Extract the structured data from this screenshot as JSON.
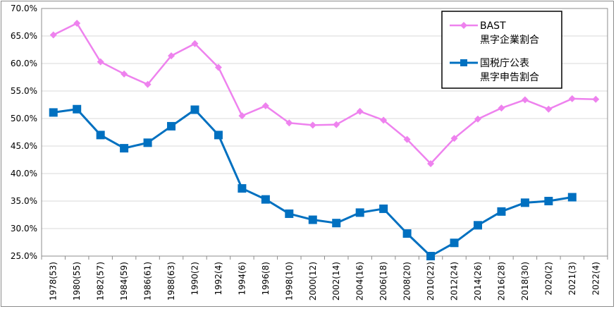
{
  "chart_data": {
    "type": "line",
    "title": "",
    "xlabel": "",
    "ylabel": "",
    "categories": [
      "1978(53)",
      "1980(55)",
      "1982(57)",
      "1984(59)",
      "1986(61)",
      "1988(63)",
      "1990(2)",
      "1992(4)",
      "1994(6)",
      "1996(8)",
      "1998(10)",
      "2000(12)",
      "2002(14)",
      "2004(16)",
      "2006(18)",
      "2008(20)",
      "2010(22)",
      "2012(24)",
      "2014(26)",
      "2016(28)",
      "2018(30)",
      "2020(2)",
      "2021(3)",
      "2022(4)"
    ],
    "ylim": [
      25.0,
      70.0
    ],
    "yticks": [
      "25.0%",
      "30.0%",
      "35.0%",
      "40.0%",
      "45.0%",
      "50.0%",
      "55.0%",
      "60.0%",
      "65.0%",
      "70.0%"
    ],
    "grid": true,
    "legend_position": "top-right",
    "series": [
      {
        "name_lines": [
          "BAST",
          "黒字企業割合"
        ],
        "color": "#ee82ee",
        "marker": "diamond",
        "values": [
          65.2,
          67.3,
          60.3,
          58.1,
          56.2,
          61.4,
          63.6,
          59.3,
          50.5,
          52.3,
          49.2,
          48.8,
          48.9,
          51.3,
          49.7,
          46.2,
          41.8,
          46.4,
          49.9,
          51.9,
          53.4,
          51.7,
          53.6,
          53.5
        ]
      },
      {
        "name_lines": [
          "国税庁公表",
          "黒字申告割合"
        ],
        "color": "#0070c0",
        "marker": "square",
        "values": [
          51.1,
          51.7,
          47.0,
          44.6,
          45.6,
          48.6,
          51.6,
          47.0,
          37.3,
          35.3,
          32.7,
          31.6,
          31.0,
          32.9,
          33.6,
          29.1,
          25.0,
          27.4,
          30.6,
          33.1,
          34.7,
          35.0,
          35.7,
          null
        ]
      }
    ]
  }
}
